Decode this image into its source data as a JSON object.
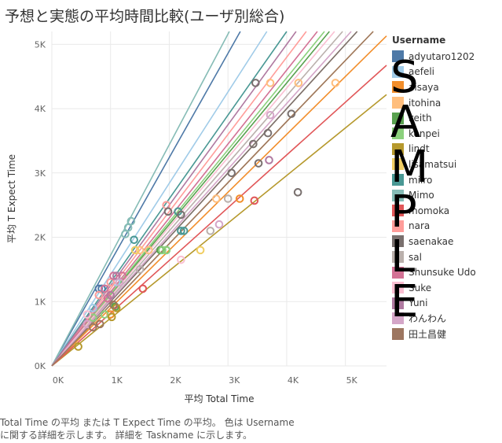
{
  "title": "予想と実態の平均時間比較(ユーザ別総合)",
  "caption": [
    "Total Time の平均 または T Expect Time の平均。 色は Username",
    "に関する詳細を示します。 詳細を Taskname に示します。"
  ],
  "watermark": [
    "S",
    "A",
    "M",
    "P",
    "L",
    "E"
  ],
  "chart_data": {
    "type": "scatter",
    "xlabel": "平均 Total Time",
    "ylabel": "平均 T Expect Time",
    "xlim": [
      0,
      5700
    ],
    "ylim": [
      0,
      5200
    ],
    "xticks": [
      0,
      1000,
      2000,
      3000,
      4000,
      5000
    ],
    "yticks": [
      0,
      1000,
      2000,
      3000,
      4000,
      5000
    ],
    "xtick_labels": [
      "0K",
      "1K",
      "2K",
      "3K",
      "4K",
      "5K"
    ],
    "ytick_labels": [
      "0K",
      "1K",
      "2K",
      "3K",
      "4K",
      "5K"
    ],
    "legend_title": "Username",
    "legend_position": "right",
    "trend_lines": true,
    "series": [
      {
        "name": "adyutaro1202",
        "color": "#4e79a7",
        "slope": 1.62,
        "points": [
          [
            800,
            1200
          ],
          [
            850,
            1200
          ]
        ]
      },
      {
        "name": "aefeli",
        "color": "#a0cbe8",
        "slope": 1.42,
        "points": [
          [
            700,
            900
          ],
          [
            900,
            1200
          ],
          [
            1100,
            1300
          ]
        ]
      },
      {
        "name": "aisaya",
        "color": "#f28e2b",
        "slope": 0.9,
        "points": [
          [
            1000,
            800
          ],
          [
            3200,
            2600
          ]
        ]
      },
      {
        "name": "itohina",
        "color": "#ffbe7d",
        "slope": 1.0,
        "points": [
          [
            1500,
            1800
          ],
          [
            1650,
            1800
          ],
          [
            2800,
            2600
          ],
          [
            3720,
            4400
          ],
          [
            4830,
            4400
          ],
          [
            4200,
            4400
          ]
        ]
      },
      {
        "name": "keith",
        "color": "#59a14f",
        "slope": 1.1,
        "points": [
          [
            1850,
            1800
          ],
          [
            1950,
            1800
          ],
          [
            1080,
            920
          ]
        ]
      },
      {
        "name": "konpei",
        "color": "#8cd17d",
        "slope": 1.12,
        "points": [
          [
            1880,
            1800
          ],
          [
            1950,
            1800
          ],
          [
            700,
            750
          ],
          [
            900,
            800
          ]
        ]
      },
      {
        "name": "lindt",
        "color": "#b6992d",
        "slope": 0.74,
        "points": [
          [
            450,
            300
          ],
          [
            1020,
            760
          ],
          [
            1100,
            900
          ]
        ]
      },
      {
        "name": "lisamatsui",
        "color": "#f1ce63",
        "slope": 0.95,
        "points": [
          [
            2530,
            1800
          ],
          [
            1420,
            1800
          ]
        ]
      },
      {
        "name": "miiro",
        "color": "#499894",
        "slope": 1.3,
        "points": [
          [
            1400,
            1960
          ],
          [
            2250,
            2100
          ],
          [
            2200,
            2100
          ],
          [
            2150,
            2400
          ]
        ]
      },
      {
        "name": "Mimo",
        "color": "#86bcb6",
        "slope": 1.72,
        "points": [
          [
            1250,
            2050
          ],
          [
            1300,
            2150
          ],
          [
            1350,
            2250
          ]
        ]
      },
      {
        "name": "momoka",
        "color": "#e15759",
        "slope": 0.82,
        "points": [
          [
            3450,
            2570
          ],
          [
            1550,
            1200
          ]
        ]
      },
      {
        "name": "nara",
        "color": "#ff9d9a",
        "slope": 1.2,
        "points": [
          [
            1950,
            2500
          ],
          [
            1000,
            1300
          ],
          [
            800,
            1100
          ]
        ]
      },
      {
        "name": "saenakae",
        "color": "#79706e",
        "slope": 1.0,
        "points": [
          [
            3470,
            4400
          ],
          [
            3430,
            3450
          ],
          [
            3520,
            3150
          ],
          [
            3680,
            3620
          ],
          [
            4080,
            3920
          ],
          [
            4190,
            2700
          ],
          [
            3060,
            3000
          ],
          [
            1980,
            2400
          ],
          [
            2200,
            2350
          ]
        ]
      },
      {
        "name": "sal",
        "color": "#bab0ac",
        "slope": 1.05,
        "points": [
          [
            3000,
            2600
          ],
          [
            2700,
            2100
          ],
          [
            1500,
            1500
          ]
        ]
      },
      {
        "name": "Shunsuke Udo",
        "color": "#d37295",
        "slope": 1.15,
        "points": [
          [
            900,
            1200
          ],
          [
            1050,
            1400
          ],
          [
            1200,
            1400
          ],
          [
            950,
            1050
          ]
        ]
      },
      {
        "name": "Suke",
        "color": "#fabfd2",
        "slope": 1.08,
        "points": [
          [
            2200,
            1650
          ],
          [
            600,
            800
          ]
        ]
      },
      {
        "name": "Yuni",
        "color": "#b07aa1",
        "slope": 1.25,
        "points": [
          [
            1100,
            1400
          ],
          [
            3700,
            3200
          ],
          [
            1000,
            1100
          ]
        ]
      },
      {
        "name": "わんわん",
        "color": "#d4a6c8",
        "slope": 1.02,
        "points": [
          [
            2850,
            2200
          ],
          [
            3720,
            3900
          ],
          [
            600,
            650
          ],
          [
            1150,
            1300
          ]
        ]
      },
      {
        "name": "田土昌健",
        "color": "#9d7660",
        "slope": 0.95,
        "points": [
          [
            820,
            650
          ],
          [
            700,
            600
          ],
          [
            1050,
            950
          ]
        ]
      }
    ]
  }
}
